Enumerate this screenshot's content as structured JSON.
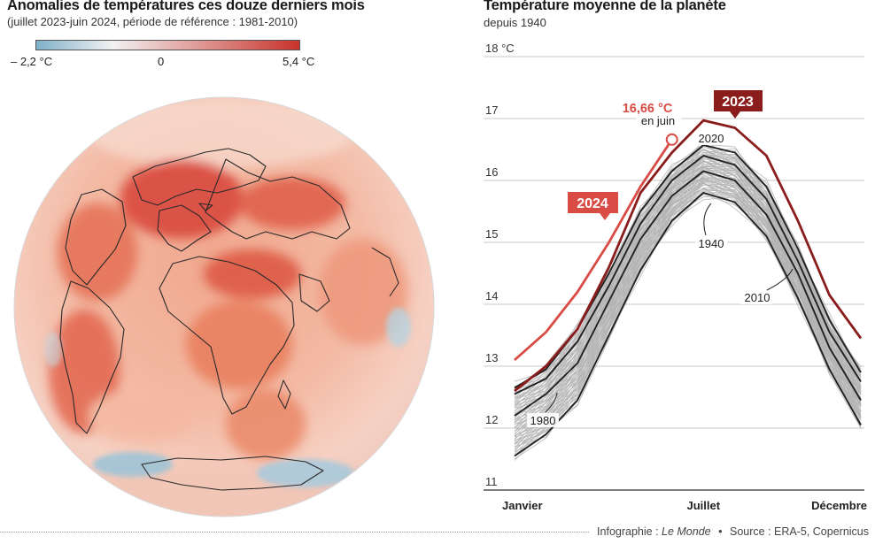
{
  "map": {
    "title": "Anomalies de températures ces douze derniers mois",
    "subtitle": "(juillet 2023-juin 2024, période de référence : 1981-2010)",
    "scale": {
      "min_label": "– 2,2 °C",
      "zero_label": "0",
      "max_label": "5,4 °C",
      "min_value": -2.2,
      "max_value": 5.4,
      "cold_color": "#7fb0c8",
      "warm_color": "#c8332b"
    }
  },
  "chart_data": {
    "type": "line",
    "title": "Température moyenne de la planète",
    "subtitle": "depuis 1940",
    "ylabel": "",
    "xlabel": "",
    "ylim": [
      11,
      18
    ],
    "yticks": [
      11,
      12,
      13,
      14,
      15,
      16,
      17,
      18
    ],
    "ytick_labels": [
      "11",
      "12",
      "13",
      "14",
      "15",
      "16",
      "17",
      "18 °C"
    ],
    "x_labels": [
      {
        "month": 1,
        "label": "Janvier"
      },
      {
        "month": 7,
        "label": "Juillet"
      },
      {
        "month": 12,
        "label": "Décembre"
      }
    ],
    "series": [
      {
        "name": "2024",
        "color": "#d94c45",
        "values": [
          13.1,
          13.55,
          14.2,
          15.0,
          15.9,
          16.66
        ]
      },
      {
        "name": "2023",
        "color": "#8b1c1c",
        "values": [
          12.6,
          13.0,
          13.6,
          14.6,
          15.8,
          16.45,
          16.97,
          16.85,
          16.4,
          15.35,
          14.15,
          13.45
        ]
      },
      {
        "name": "2020",
        "color": "#222222",
        "values": [
          12.65,
          12.95,
          13.6,
          14.5,
          15.5,
          16.15,
          16.57,
          16.45,
          15.9,
          14.9,
          13.75,
          12.9
        ]
      },
      {
        "name": "2010",
        "color": "#222222",
        "values": [
          12.55,
          12.8,
          13.4,
          14.3,
          15.3,
          16.0,
          16.4,
          16.25,
          15.7,
          14.7,
          13.55,
          12.75
        ]
      },
      {
        "name": "1980",
        "color": "#222222",
        "values": [
          12.2,
          12.55,
          13.05,
          14.05,
          15.05,
          15.75,
          16.15,
          16.0,
          15.45,
          14.5,
          13.3,
          12.45
        ]
      },
      {
        "name": "1940",
        "color": "#222222",
        "values": [
          11.55,
          11.9,
          12.45,
          13.5,
          14.55,
          15.35,
          15.8,
          15.65,
          15.1,
          14.1,
          12.95,
          12.05
        ]
      }
    ],
    "background_years": "1940-2022",
    "annotations": {
      "value_2024": "16,66 °C",
      "value_2024_note": "en juin",
      "label_2024": "2024",
      "label_2023": "2023",
      "label_2020": "2020",
      "label_1940": "1940",
      "label_2010": "2010",
      "label_1980": "1980"
    }
  },
  "footer": {
    "infographie_prefix": "Infographie : ",
    "infographie_name": "Le Monde",
    "separator": "•",
    "source": "Source : ERA-5, Copernicus"
  }
}
